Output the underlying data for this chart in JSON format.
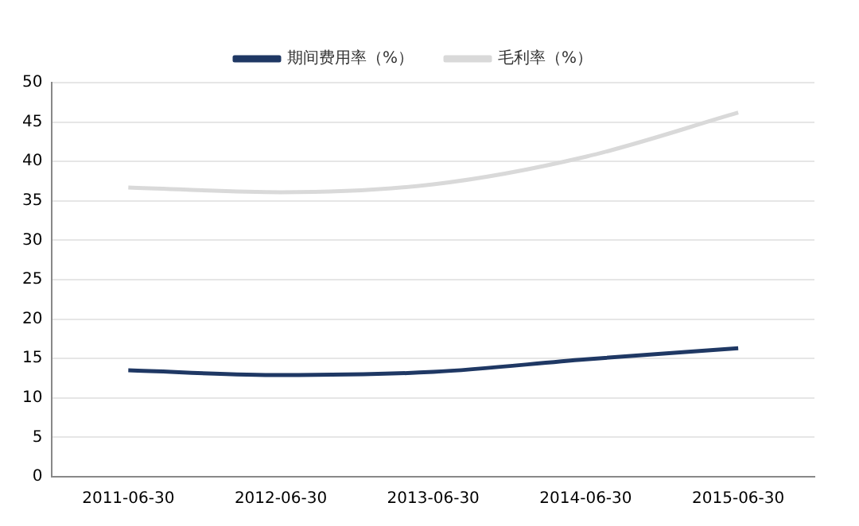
{
  "chart_data": {
    "type": "line",
    "categories": [
      "2011-06-30",
      "2012-06-30",
      "2013-06-30",
      "2014-06-30",
      "2015-06-30"
    ],
    "series": [
      {
        "name": "期间费用率（%）",
        "color": "#1f3864",
        "values": [
          13.5,
          12.9,
          13.3,
          14.9,
          16.3
        ]
      },
      {
        "name": "毛利率（%）",
        "color": "#d9d9d9",
        "values": [
          36.7,
          36.1,
          37.1,
          40.6,
          46.2
        ]
      }
    ],
    "ylim": [
      0,
      50
    ],
    "yticks": [
      0,
      5,
      10,
      15,
      20,
      25,
      30,
      35,
      40,
      45,
      50
    ],
    "grid": "y",
    "legend": "top",
    "marker": "none",
    "line_style": "solid"
  }
}
